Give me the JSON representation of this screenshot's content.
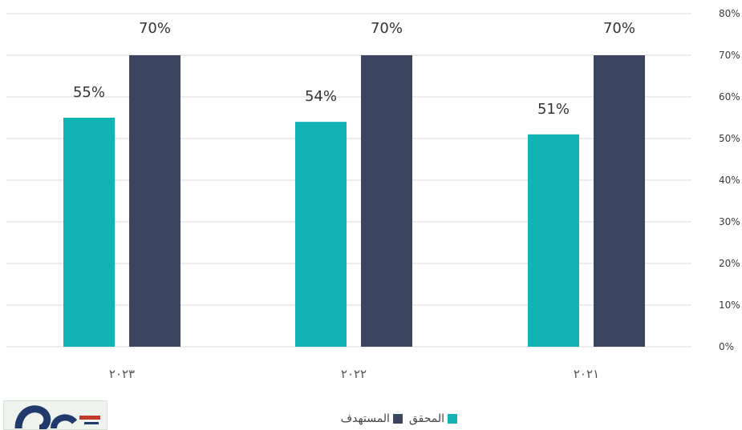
{
  "chart_data": {
    "type": "bar",
    "categories": [
      "٢٠٢٣",
      "٢٠٢٢",
      "٢٠٢١"
    ],
    "series": [
      {
        "name": "المحقق",
        "values": [
          55,
          54,
          51
        ],
        "color": "#12b3b5"
      },
      {
        "name": "المستهدف",
        "values": [
          70,
          70,
          70
        ],
        "color": "#3c4560"
      }
    ],
    "data_labels": [
      [
        "55%",
        "54%",
        "51%"
      ],
      [
        "70%",
        "70%",
        "70%"
      ]
    ],
    "yticks": [
      "0%",
      "10%",
      "20%",
      "30%",
      "40%",
      "50%",
      "60%",
      "70%",
      "80%"
    ],
    "ylim": [
      0,
      80
    ],
    "y_axis_side": "right",
    "grid": true,
    "legend_position": "bottom"
  },
  "colors": {
    "grid": "#d9d9d9",
    "achieved": "#12b3b5",
    "target": "#3c4560"
  },
  "logo": {
    "icon": "publisher-logo-icon"
  }
}
